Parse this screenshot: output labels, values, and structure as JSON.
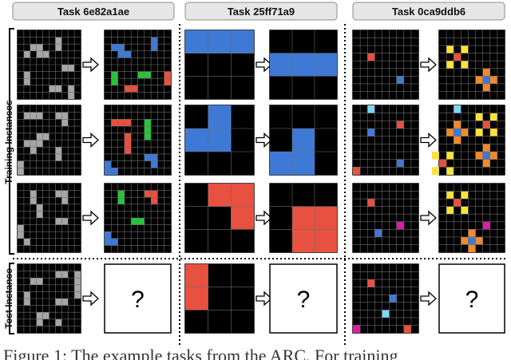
{
  "tasks": [
    {
      "title": "Task 6e82a1ae"
    },
    {
      "title": "Task 25ff71a9"
    },
    {
      "title": "Task 0ca9ddb6"
    }
  ],
  "labels": {
    "training": "Training Instances",
    "test": "Test Instance",
    "unknown": "?"
  },
  "caption": "Figure 1: The example tasks from the ARC. For training",
  "colors": {
    "black": "#000000",
    "grey": "#a6a6a6",
    "blue": "#3f79d6",
    "red": "#e8503f",
    "green": "#28c43a",
    "yellow": "#fde23a",
    "orange": "#f08a2b",
    "lightblue": "#7fd6f2",
    "magenta": "#e01aa6",
    "gridline": "#6e6e6e"
  }
}
